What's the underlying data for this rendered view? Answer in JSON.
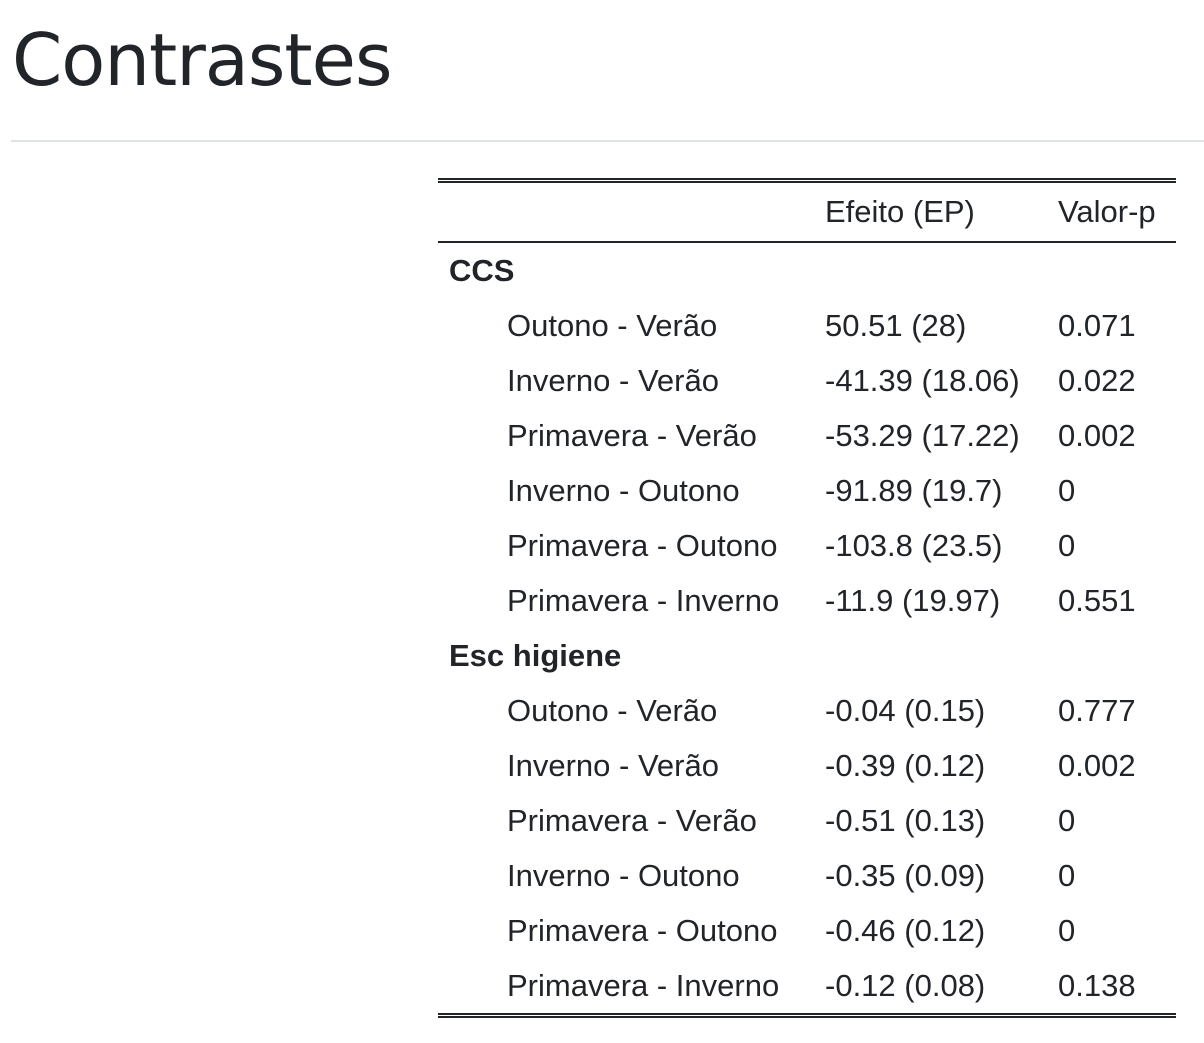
{
  "page": {
    "title": "Contrastes"
  },
  "table": {
    "headers": [
      "",
      "Efeito (EP)",
      "Valor-p"
    ],
    "groups": [
      {
        "name": "CCS",
        "rows": [
          {
            "contrast": "Outono - Verão",
            "effect": "50.51 (28)",
            "p": "0.071"
          },
          {
            "contrast": "Inverno - Verão",
            "effect": "-41.39 (18.06)",
            "p": "0.022"
          },
          {
            "contrast": "Primavera - Verão",
            "effect": "-53.29 (17.22)",
            "p": "0.002"
          },
          {
            "contrast": "Inverno - Outono",
            "effect": "-91.89 (19.7)",
            "p": "0"
          },
          {
            "contrast": "Primavera - Outono",
            "effect": "-103.8 (23.5)",
            "p": "0"
          },
          {
            "contrast": "Primavera - Inverno",
            "effect": "-11.9 (19.97)",
            "p": "0.551"
          }
        ]
      },
      {
        "name": "Esc higiene",
        "rows": [
          {
            "contrast": "Outono - Verão",
            "effect": "-0.04 (0.15)",
            "p": "0.777"
          },
          {
            "contrast": "Inverno - Verão",
            "effect": "-0.39 (0.12)",
            "p": "0.002"
          },
          {
            "contrast": "Primavera - Verão",
            "effect": "-0.51 (0.13)",
            "p": "0"
          },
          {
            "contrast": "Inverno - Outono",
            "effect": "-0.35 (0.09)",
            "p": "0"
          },
          {
            "contrast": "Primavera - Outono",
            "effect": "-0.46 (0.12)",
            "p": "0"
          },
          {
            "contrast": "Primavera - Inverno",
            "effect": "-0.12 (0.08)",
            "p": "0.138"
          }
        ]
      }
    ]
  }
}
